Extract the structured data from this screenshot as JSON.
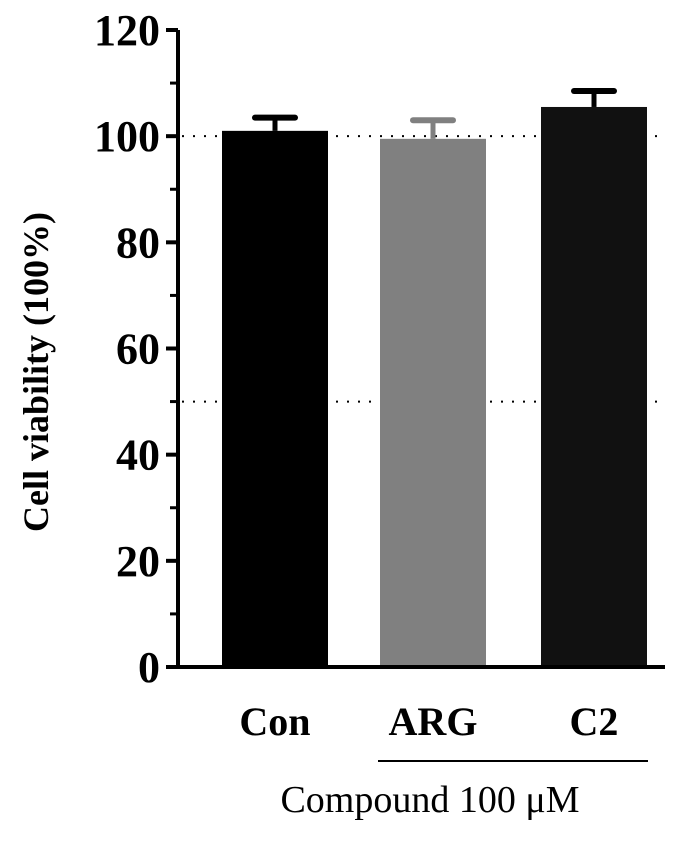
{
  "chart_data": {
    "type": "bar",
    "title": "",
    "xlabel": "",
    "ylabel": "Cell viability (100%)",
    "ylim": [
      0,
      120
    ],
    "yticks": [
      0,
      20,
      40,
      60,
      80,
      100,
      120
    ],
    "ytick_labels": [
      "0",
      "20",
      "40",
      "60",
      "80",
      "100",
      "120"
    ],
    "categories": [
      "Con",
      "ARG",
      "C2"
    ],
    "values": [
      101,
      99.5,
      105.5
    ],
    "errors": [
      2.5,
      3.5,
      3
    ],
    "bar_colors": [
      "#000000",
      "#808080",
      "#111111"
    ],
    "error_colors": [
      "#000000",
      "#808080",
      "#000000"
    ],
    "reference_lines": [
      100,
      50
    ],
    "group_bracket": {
      "label": "Compound 100 μM",
      "categories": [
        "ARG",
        "C2"
      ]
    },
    "grid": false,
    "legend": "none"
  }
}
